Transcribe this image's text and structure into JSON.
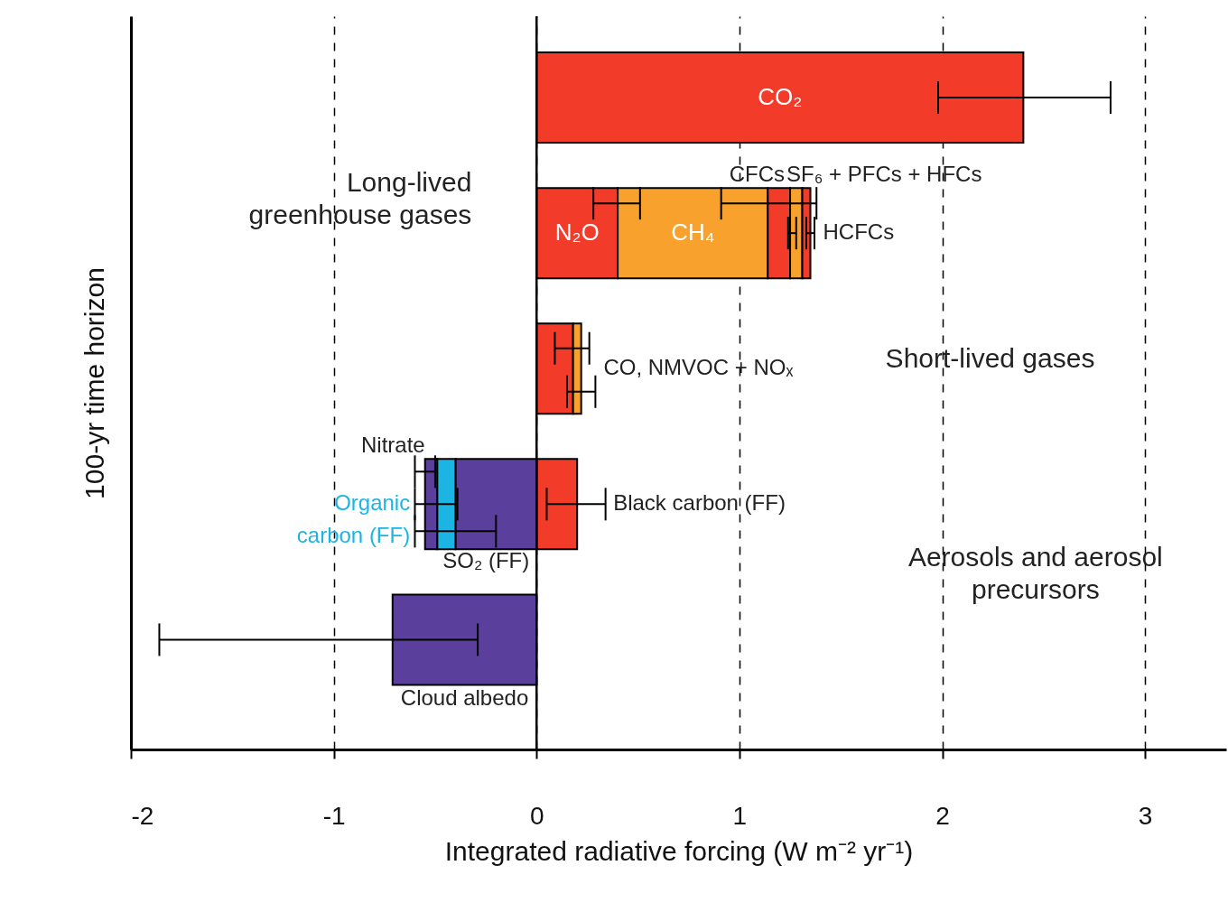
{
  "chart_data": {
    "type": "bar",
    "orientation": "horizontal",
    "categories": [
      null,
      null,
      null,
      null,
      null
    ],
    "xlabel": "Integrated radiative forcing (W m⁻² yr⁻¹)",
    "ylabel": "100-yr time horizon",
    "xlim": [
      -2,
      3.4
    ],
    "xticks": [
      -2,
      -1,
      0,
      1,
      2,
      3
    ],
    "grid": "x",
    "tick_labels": "x",
    "ref_lines": [
      {
        "axis": "x",
        "value": 0
      }
    ],
    "annotations": [
      "Long-lived greenhouse gases",
      "CO, NMVOC + NOₓ",
      "Short-lived gases",
      "Aerosols and aerosol precursors"
    ],
    "series": [
      {
        "name": "CO₂",
        "color": "#f33b2a",
        "values": [
          2.4,
          null,
          null,
          null,
          null
        ],
        "base": [
          0,
          null,
          null,
          null,
          null
        ],
        "errors": [
          [
            1.98,
            2.83
          ],
          null,
          null,
          null,
          null
        ]
      },
      {
        "name": "N₂O",
        "color": "#f33b2a",
        "values": [
          null,
          0.4,
          null,
          null,
          null
        ],
        "base": [
          null,
          0,
          null,
          null,
          null
        ],
        "errors": [
          null,
          [
            0.28,
            0.51
          ],
          null,
          null,
          null
        ]
      },
      {
        "name": "CH₄",
        "color": "#f9a12d",
        "values": [
          null,
          0.74,
          null,
          null,
          null
        ],
        "base": [
          null,
          0.4,
          null,
          null,
          null
        ],
        "errors": [
          null,
          [
            0.91,
            1.38
          ],
          null,
          null,
          null
        ]
      },
      {
        "name": "CFCs",
        "color": "#f33b2a",
        "values": [
          null,
          0.11,
          null,
          null,
          null
        ],
        "base": [
          null,
          1.14,
          null,
          null,
          null
        ],
        "errors": [
          null,
          [
            1.24,
            1.28
          ],
          null,
          null,
          null
        ]
      },
      {
        "name": "SF₆ + PFCs + HFCs",
        "color": "#f9a12d",
        "values": [
          null,
          0.06,
          null,
          null,
          null
        ],
        "base": [
          null,
          1.25,
          null,
          null,
          null
        ]
      },
      {
        "name": "HCFCs",
        "color": "#f33b2a",
        "values": [
          null,
          0.04,
          null,
          null,
          null
        ],
        "base": [
          null,
          1.31,
          null,
          null,
          null
        ],
        "errors": [
          null,
          [
            1.33,
            1.37
          ],
          null,
          null,
          null
        ]
      },
      {
        "color": "#f33b2a",
        "values": [
          null,
          null,
          0.18,
          null,
          null
        ],
        "base": [
          null,
          null,
          0,
          null,
          null
        ],
        "errors": [
          null,
          null,
          [
            0.09,
            0.26
          ],
          null,
          null
        ]
      },
      {
        "color": "#f9a12d",
        "values": [
          null,
          null,
          0.04,
          null,
          null
        ],
        "base": [
          null,
          null,
          0.18,
          null,
          null
        ],
        "errors": [
          null,
          null,
          [
            0.15,
            0.29
          ],
          null,
          null
        ]
      },
      {
        "name": "Black carbon (FF)",
        "color": "#f33b2a",
        "values": [
          null,
          null,
          null,
          0.2,
          null
        ],
        "base": [
          null,
          null,
          null,
          0,
          null
        ],
        "errors": [
          null,
          null,
          null,
          [
            0.05,
            0.34
          ],
          null
        ]
      },
      {
        "name": "SO₂ (FF)",
        "color": "#5a3f9c",
        "values": [
          null,
          null,
          null,
          -0.4,
          null
        ],
        "base": [
          null,
          null,
          null,
          0,
          null
        ],
        "errors": [
          null,
          null,
          null,
          [
            -0.6,
            -0.2
          ],
          null
        ]
      },
      {
        "name": "Organic carbon (FF)",
        "color": "#1cb5e3",
        "values": [
          null,
          null,
          null,
          -0.09,
          null
        ],
        "base": [
          null,
          null,
          null,
          -0.4,
          null
        ],
        "errors": [
          null,
          null,
          null,
          [
            -0.6,
            -0.39
          ],
          null
        ]
      },
      {
        "name": "Nitrate",
        "color": "#5a3f9c",
        "values": [
          null,
          null,
          null,
          -0.06,
          null
        ],
        "base": [
          null,
          null,
          null,
          -0.49,
          null
        ],
        "errors": [
          null,
          null,
          null,
          [
            -0.6,
            -0.5
          ],
          null
        ]
      },
      {
        "name": "Cloud albedo",
        "color": "#5a3f9c",
        "values": [
          null,
          null,
          null,
          null,
          -0.71
        ],
        "base": [
          null,
          null,
          null,
          null,
          0
        ],
        "errors": [
          null,
          null,
          null,
          null,
          [
            -1.86,
            -0.29
          ]
        ]
      }
    ]
  }
}
